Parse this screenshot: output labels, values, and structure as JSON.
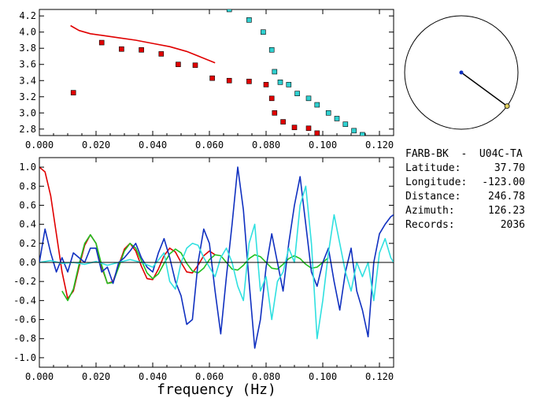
{
  "info": {
    "station": "FARB-BK  -  U04C-TA",
    "rows": [
      {
        "key": "Latitude:",
        "value": "37.70"
      },
      {
        "key": "Longitude:",
        "value": "-123.00"
      },
      {
        "key": "Distance:",
        "value": "246.78"
      },
      {
        "key": "Azimuth:",
        "value": "126.23"
      },
      {
        "key": "Records:",
        "value": "2036"
      }
    ]
  },
  "compass": {
    "azimuth_deg": 126.23
  },
  "chart_data": [
    {
      "type": "scatter",
      "title": "",
      "xlabel": "",
      "ylabel": "",
      "xlim": [
        0.0,
        0.125
      ],
      "ylim": [
        2.72,
        4.28
      ],
      "x_ticks": [
        "0.000",
        "0.020",
        "0.040",
        "0.060",
        "0.080",
        "0.100",
        "0.120"
      ],
      "y_ticks": [
        "2.8",
        "3.0",
        "3.2",
        "3.4",
        "3.6",
        "3.8",
        "4.0",
        "4.2"
      ],
      "series": [
        {
          "kind": "line",
          "color": "#e00000",
          "x": [
            0.011,
            0.014,
            0.018,
            0.022,
            0.028,
            0.034,
            0.04,
            0.046,
            0.052,
            0.057,
            0.062
          ],
          "y": [
            4.08,
            4.02,
            3.98,
            3.96,
            3.93,
            3.9,
            3.86,
            3.82,
            3.76,
            3.69,
            3.62
          ]
        },
        {
          "kind": "markers",
          "color": "#e00000",
          "x": [
            0.012,
            0.022,
            0.029,
            0.036,
            0.043,
            0.049,
            0.055,
            0.061,
            0.067,
            0.074,
            0.08,
            0.082,
            0.083,
            0.086,
            0.09,
            0.095,
            0.098
          ],
          "y": [
            3.25,
            3.87,
            3.79,
            3.78,
            3.73,
            3.6,
            3.59,
            3.43,
            3.4,
            3.39,
            3.35,
            3.18,
            3.0,
            2.89,
            2.82,
            2.81,
            2.75
          ]
        },
        {
          "kind": "markers",
          "color": "#30d0d0",
          "x": [
            0.067,
            0.074,
            0.079,
            0.082,
            0.083,
            0.085,
            0.088,
            0.091,
            0.095,
            0.098,
            0.102,
            0.105,
            0.108,
            0.111,
            0.114
          ],
          "y": [
            4.28,
            4.15,
            4.0,
            3.78,
            3.51,
            3.38,
            3.35,
            3.24,
            3.18,
            3.1,
            3.0,
            2.93,
            2.86,
            2.78,
            2.73
          ]
        }
      ]
    },
    {
      "type": "line",
      "title": "",
      "xlabel": "frequency (Hz)",
      "ylabel": "",
      "xlim": [
        0.0,
        0.125
      ],
      "ylim": [
        -1.1,
        1.1
      ],
      "x_ticks": [
        "0.000",
        "0.020",
        "0.040",
        "0.060",
        "0.080",
        "0.100",
        "0.120"
      ],
      "y_ticks": [
        "-1.0",
        "-0.8",
        "-0.6",
        "-0.4",
        "-0.2",
        "0.0",
        "0.2",
        "0.4",
        "0.6",
        "0.8",
        "1.0"
      ],
      "series": [
        {
          "color": "#e00000",
          "x": [
            0.0,
            0.002,
            0.004,
            0.006,
            0.008,
            0.01,
            0.012,
            0.014,
            0.016,
            0.018,
            0.02,
            0.022,
            0.024,
            0.026,
            0.028,
            0.03,
            0.032,
            0.034,
            0.036,
            0.038,
            0.04,
            0.042,
            0.044,
            0.046,
            0.048,
            0.05,
            0.052,
            0.054,
            0.056,
            0.058,
            0.06,
            0.062
          ],
          "y": [
            1.0,
            0.95,
            0.7,
            0.3,
            -0.1,
            -0.38,
            -0.3,
            -0.05,
            0.18,
            0.29,
            0.2,
            -0.05,
            -0.22,
            -0.2,
            -0.03,
            0.14,
            0.2,
            0.12,
            -0.04,
            -0.17,
            -0.18,
            -0.07,
            0.07,
            0.15,
            0.11,
            0.0,
            -0.1,
            -0.11,
            -0.03,
            0.07,
            0.12,
            0.08
          ]
        },
        {
          "color": "#20c020",
          "x": [
            0.008,
            0.01,
            0.012,
            0.014,
            0.016,
            0.018,
            0.02,
            0.022,
            0.024,
            0.026,
            0.028,
            0.03,
            0.032,
            0.034,
            0.036,
            0.038,
            0.04,
            0.042,
            0.044,
            0.046,
            0.048,
            0.05,
            0.052,
            0.054,
            0.056,
            0.058,
            0.06,
            0.062,
            0.064,
            0.066,
            0.068,
            0.07,
            0.072,
            0.074,
            0.076,
            0.078,
            0.08,
            0.082,
            0.084,
            0.086,
            0.088,
            0.09,
            0.092,
            0.094,
            0.096,
            0.098,
            0.1,
            0.102
          ],
          "y": [
            -0.3,
            -0.4,
            -0.28,
            -0.02,
            0.2,
            0.29,
            0.2,
            -0.03,
            -0.22,
            -0.21,
            -0.05,
            0.12,
            0.2,
            0.15,
            0.02,
            -0.11,
            -0.17,
            -0.12,
            -0.01,
            0.09,
            0.14,
            0.1,
            -0.01,
            -0.09,
            -0.11,
            -0.06,
            0.03,
            0.08,
            0.07,
            0.0,
            -0.07,
            -0.08,
            -0.03,
            0.04,
            0.08,
            0.06,
            0.0,
            -0.06,
            -0.07,
            -0.02,
            0.04,
            0.07,
            0.04,
            -0.02,
            -0.06,
            -0.05,
            0.0,
            0.05
          ]
        },
        {
          "color": "#1030c0",
          "x": [
            0.0,
            0.002,
            0.004,
            0.006,
            0.008,
            0.01,
            0.012,
            0.014,
            0.016,
            0.018,
            0.02,
            0.022,
            0.024,
            0.026,
            0.028,
            0.03,
            0.032,
            0.034,
            0.036,
            0.038,
            0.04,
            0.042,
            0.044,
            0.046,
            0.048,
            0.05,
            0.052,
            0.054,
            0.056,
            0.058,
            0.06,
            0.062,
            0.064,
            0.066,
            0.068,
            0.07,
            0.072,
            0.074,
            0.076,
            0.078,
            0.08,
            0.082,
            0.084,
            0.086,
            0.088,
            0.09,
            0.092,
            0.094,
            0.096,
            0.098,
            0.1,
            0.102,
            0.104,
            0.106,
            0.108,
            0.11,
            0.112,
            0.114,
            0.116,
            0.118,
            0.12,
            0.122,
            0.124,
            0.125
          ],
          "y": [
            0.0,
            0.35,
            0.1,
            -0.1,
            0.05,
            -0.1,
            0.1,
            0.05,
            0.0,
            0.15,
            0.15,
            -0.1,
            -0.05,
            -0.22,
            0.0,
            0.05,
            0.12,
            0.2,
            0.05,
            -0.05,
            -0.1,
            0.1,
            0.25,
            0.05,
            -0.2,
            -0.35,
            -0.65,
            -0.6,
            0.0,
            0.35,
            0.2,
            -0.3,
            -0.75,
            -0.15,
            0.4,
            1.0,
            0.55,
            -0.2,
            -0.9,
            -0.6,
            -0.05,
            0.3,
            0.0,
            -0.3,
            0.2,
            0.6,
            0.9,
            0.4,
            -0.1,
            -0.25,
            0.0,
            0.15,
            -0.2,
            -0.5,
            -0.1,
            0.15,
            -0.3,
            -0.5,
            -0.78,
            0.0,
            0.3,
            0.4,
            0.48,
            0.5
          ]
        },
        {
          "color": "#30e0e0",
          "x": [
            0.0,
            0.004,
            0.008,
            0.012,
            0.016,
            0.02,
            0.024,
            0.028,
            0.032,
            0.036,
            0.04,
            0.044,
            0.046,
            0.048,
            0.05,
            0.052,
            0.054,
            0.056,
            0.058,
            0.06,
            0.062,
            0.064,
            0.066,
            0.068,
            0.07,
            0.072,
            0.074,
            0.076,
            0.078,
            0.08,
            0.082,
            0.084,
            0.086,
            0.088,
            0.09,
            0.092,
            0.094,
            0.096,
            0.098,
            0.1,
            0.102,
            0.104,
            0.106,
            0.108,
            0.11,
            0.112,
            0.114,
            0.116,
            0.118,
            0.12,
            0.122,
            0.124,
            0.125
          ],
          "y": [
            0.0,
            0.02,
            -0.01,
            0.0,
            -0.02,
            0.01,
            -0.03,
            0.0,
            0.03,
            0.0,
            -0.05,
            0.1,
            -0.2,
            -0.28,
            0.0,
            0.15,
            0.2,
            0.18,
            0.05,
            -0.05,
            -0.15,
            0.05,
            0.15,
            0.0,
            -0.25,
            -0.4,
            0.2,
            0.4,
            -0.3,
            -0.15,
            -0.6,
            -0.2,
            -0.1,
            0.15,
            0.0,
            0.6,
            0.8,
            0.2,
            -0.8,
            -0.4,
            0.1,
            0.5,
            0.2,
            -0.1,
            -0.3,
            0.0,
            -0.15,
            0.0,
            -0.4,
            0.1,
            0.25,
            0.05,
            0.0
          ]
        },
        {
          "color": "#000000",
          "x": [
            0.0,
            0.125
          ],
          "y": [
            0.0,
            0.0
          ]
        }
      ]
    }
  ]
}
